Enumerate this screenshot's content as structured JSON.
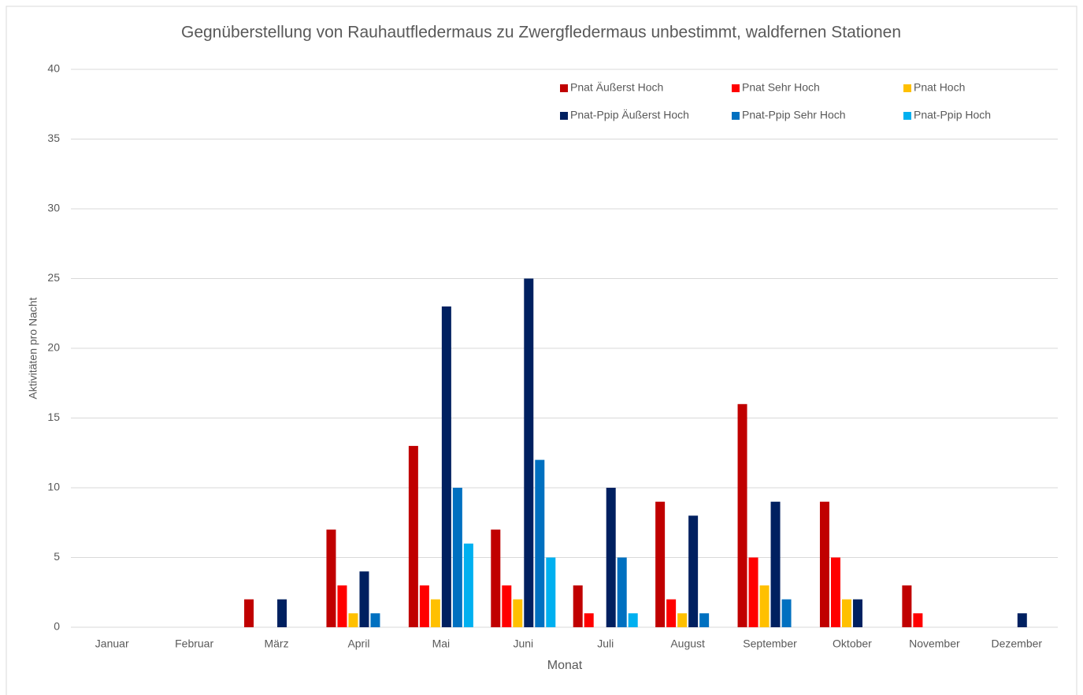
{
  "chart_data": {
    "type": "bar",
    "title": "Gegnüberstellung von Rauhautfledermaus zu Zwergfledermaus unbestimmt, waldfernen Stationen",
    "x_label": "Monat",
    "y_label": "Aktivitäten pro Nacht",
    "categories": [
      "Januar",
      "Februar",
      "März",
      "April",
      "Mai",
      "Juni",
      "Juli",
      "August",
      "September",
      "Oktober",
      "November",
      "Dezember"
    ],
    "series": [
      {
        "name": "Pnat Äußerst Hoch",
        "color": "#c00000",
        "values": [
          0,
          0,
          2,
          7,
          13,
          7,
          3,
          9,
          16,
          9,
          3,
          0
        ]
      },
      {
        "name": "Pnat Sehr Hoch",
        "color": "#ff0000",
        "values": [
          0,
          0,
          0,
          3,
          3,
          3,
          1,
          2,
          5,
          5,
          1,
          0
        ]
      },
      {
        "name": "Pnat Hoch",
        "color": "#ffc000",
        "values": [
          0,
          0,
          0,
          1,
          2,
          2,
          0,
          1,
          3,
          2,
          0,
          0
        ]
      },
      {
        "name": "Pnat-Ppip Äußerst Hoch",
        "color": "#002060",
        "values": [
          0,
          0,
          2,
          4,
          23,
          25,
          10,
          8,
          9,
          2,
          0,
          1
        ]
      },
      {
        "name": "Pnat-Ppip Sehr Hoch",
        "color": "#0070c0",
        "values": [
          0,
          0,
          0,
          1,
          10,
          12,
          5,
          1,
          2,
          0,
          0,
          0
        ]
      },
      {
        "name": "Pnat-Ppip Hoch",
        "color": "#00b0f0",
        "values": [
          0,
          0,
          0,
          0,
          6,
          5,
          1,
          0,
          0,
          0,
          0,
          0
        ]
      }
    ],
    "ylim": [
      0,
      40
    ],
    "yticks": [
      0,
      5,
      10,
      15,
      20,
      25,
      30,
      35,
      40
    ],
    "grid": true,
    "legend": "top-right"
  }
}
